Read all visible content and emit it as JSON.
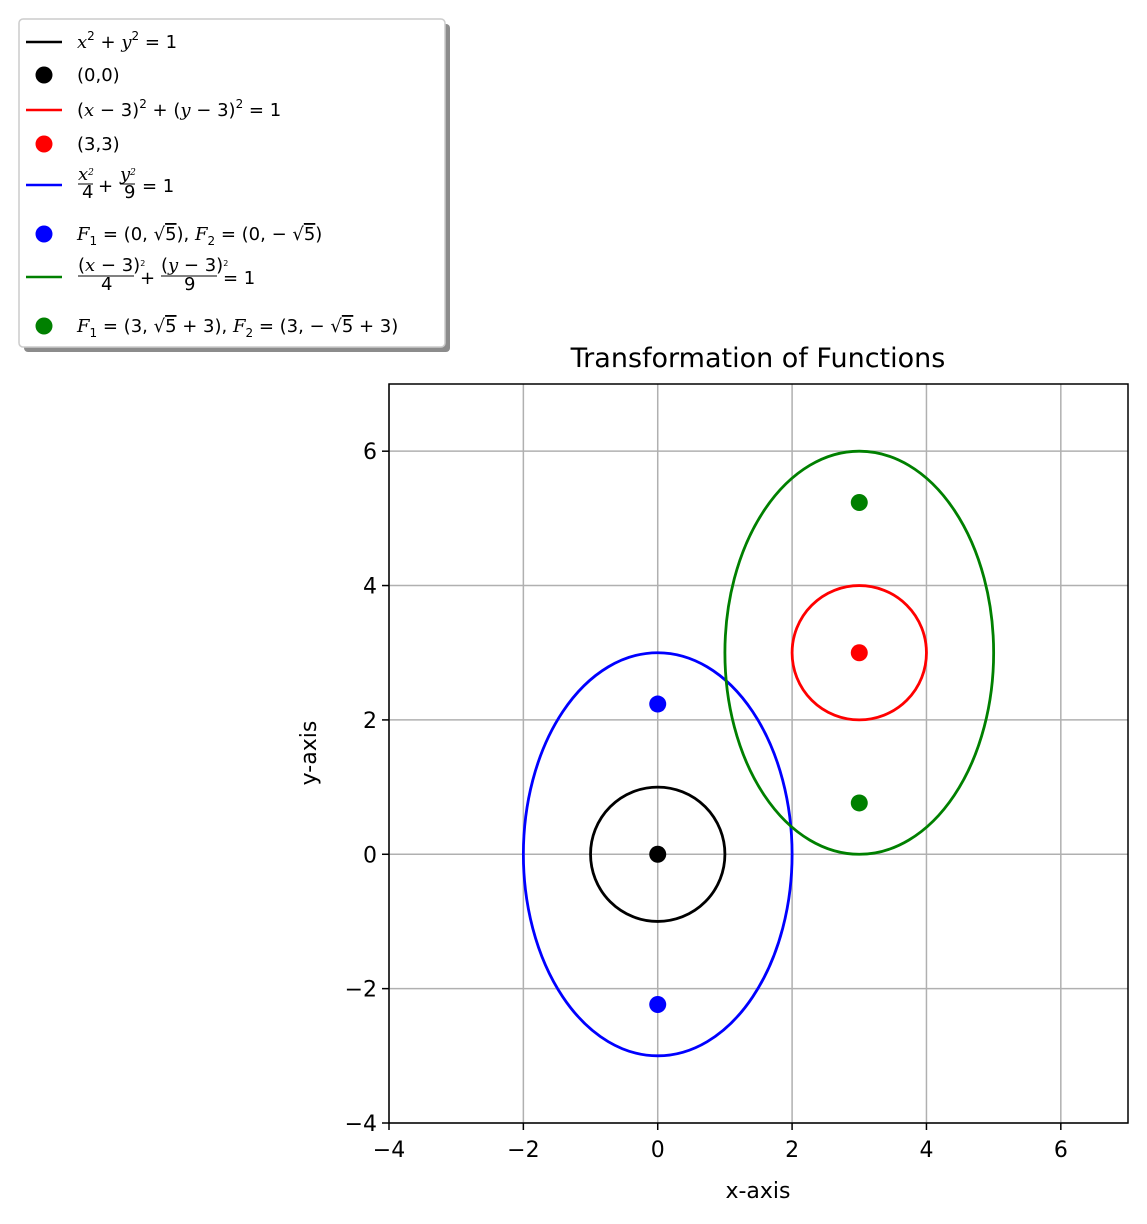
{
  "chart_data": {
    "type": "line",
    "title": "Transformation of Functions",
    "xlabel": "x-axis",
    "ylabel": "y-axis",
    "xlim": [
      -4,
      7
    ],
    "ylim": [
      -4,
      7
    ],
    "xticks": [
      -4,
      -2,
      0,
      2,
      4,
      6
    ],
    "yticks": [
      -4,
      -2,
      0,
      2,
      4,
      6
    ],
    "xtick_labels": [
      "−4",
      "−2",
      "0",
      "2",
      "4",
      "6"
    ],
    "ytick_labels": [
      "−4",
      "−2",
      "0",
      "2",
      "4",
      "6"
    ],
    "grid": true,
    "legend_placement": "top-left, outside axes",
    "series": [
      {
        "name": "x² + y² = 1",
        "kind": "ellipse",
        "center": [
          0,
          0
        ],
        "rx": 1,
        "ry": 1,
        "color": "#000000"
      },
      {
        "name": "(0,0)",
        "kind": "point",
        "points": [
          [
            0,
            0
          ]
        ],
        "color": "#000000"
      },
      {
        "name": "(x − 3)² + (y − 3)² = 1",
        "kind": "ellipse",
        "center": [
          3,
          3
        ],
        "rx": 1,
        "ry": 1,
        "color": "#ff0000"
      },
      {
        "name": "(3,3)",
        "kind": "point",
        "points": [
          [
            3,
            3
          ]
        ],
        "color": "#ff0000"
      },
      {
        "name": "x²/4 + y²/9 = 1",
        "kind": "ellipse",
        "center": [
          0,
          0
        ],
        "rx": 2,
        "ry": 3,
        "color": "#0000ff"
      },
      {
        "name": "F₁ = (0, √5), F₂ = (0, −√5)",
        "kind": "point",
        "points": [
          [
            0,
            2.236
          ],
          [
            0,
            -2.236
          ]
        ],
        "color": "#0000ff"
      },
      {
        "name": "(x − 3)²/4 + (y − 3)²/9 = 1",
        "kind": "ellipse",
        "center": [
          3,
          3
        ],
        "rx": 2,
        "ry": 3,
        "color": "#008000"
      },
      {
        "name": "F₁ = (3, √5 + 3), F₂ = (3, −√5 + 3)",
        "kind": "point",
        "points": [
          [
            3,
            5.236
          ],
          [
            3,
            0.764
          ]
        ],
        "color": "#008000"
      }
    ]
  }
}
